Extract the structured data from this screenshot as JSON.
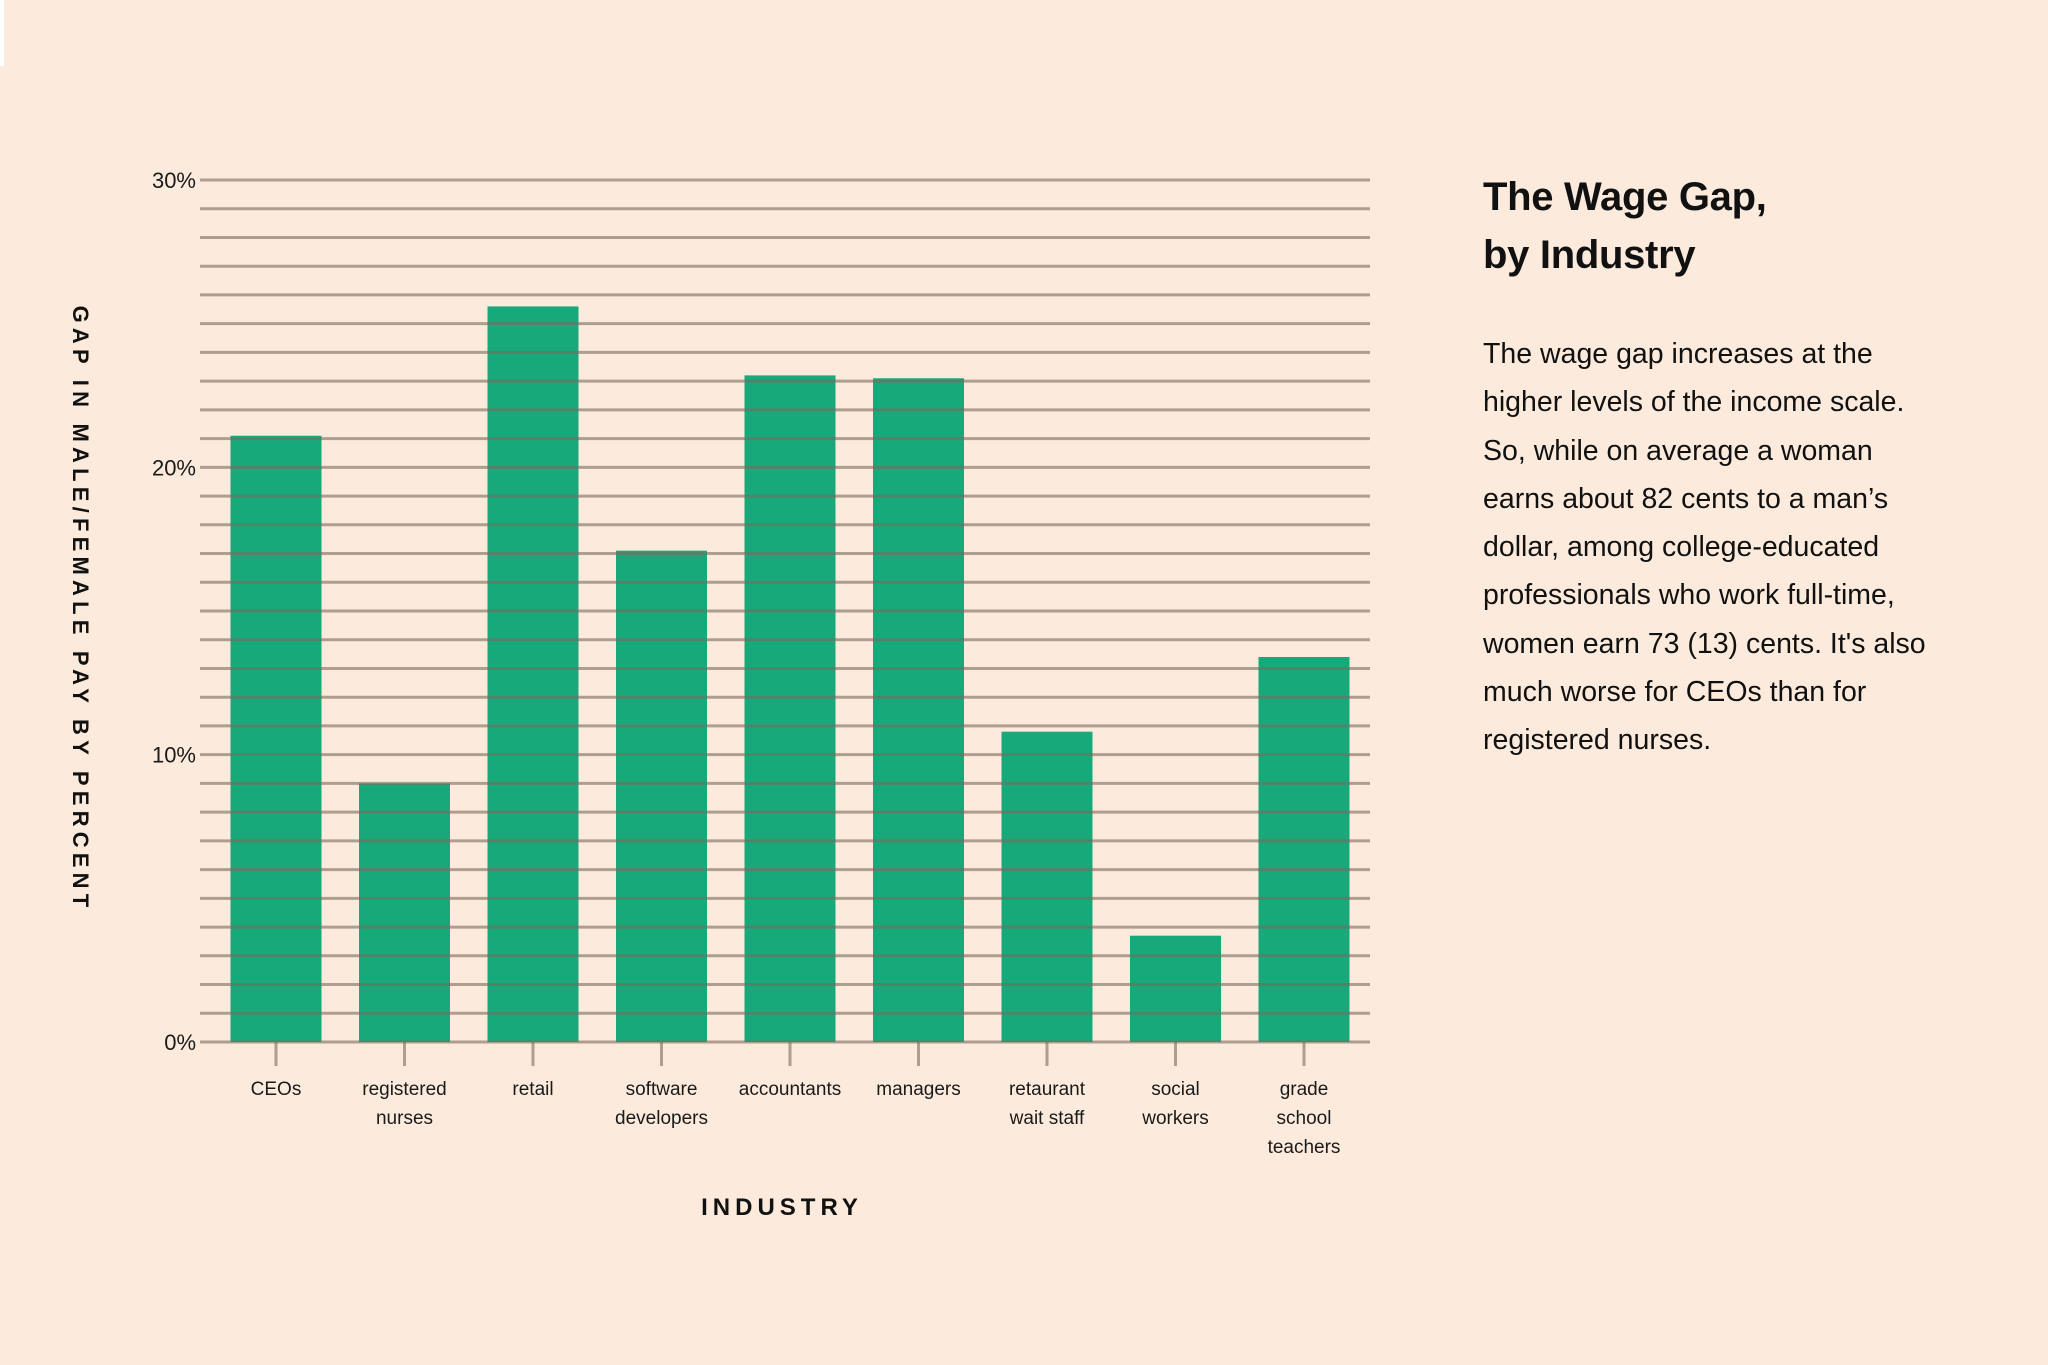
{
  "colors": {
    "background": "#fcebdc",
    "bar": "#17a97a",
    "grid": "#7a6a5c",
    "text": "#111111"
  },
  "side_panel": {
    "title_lines": [
      "The Wage Gap,",
      "by Industry"
    ],
    "body_lines": [
      "The wage gap increases at the",
      "higher levels of the income scale.",
      "So, while on average a woman",
      "earns about 82 cents to a man’s",
      "dollar, among college-educated",
      "professionals who work full-time,",
      "women earn 73 (13) cents. It's also",
      "much worse for CEOs than for",
      "registered nurses."
    ]
  },
  "chart_data": {
    "type": "bar",
    "title": "The Wage Gap, by Industry",
    "xlabel": "INDUSTRY",
    "ylabel": "GAP IN MALE/FEMALE PAY BY PERCENT",
    "ylim": [
      0,
      30
    ],
    "yticks": [
      0,
      10,
      20,
      30
    ],
    "ytick_labels": [
      "0%",
      "10%",
      "20%",
      "30%"
    ],
    "grid": true,
    "grid_step": 1,
    "legend": "none",
    "categories": [
      [
        "CEOs"
      ],
      [
        "registered",
        "nurses"
      ],
      [
        "retail"
      ],
      [
        "software",
        "developers"
      ],
      [
        "accountants"
      ],
      [
        "managers"
      ],
      [
        "retaurant",
        "wait staff"
      ],
      [
        "social",
        "workers"
      ],
      [
        "grade",
        "school",
        "teachers"
      ]
    ],
    "values": [
      21.1,
      9.0,
      25.6,
      17.1,
      23.2,
      23.1,
      10.8,
      3.7,
      13.4
    ]
  }
}
